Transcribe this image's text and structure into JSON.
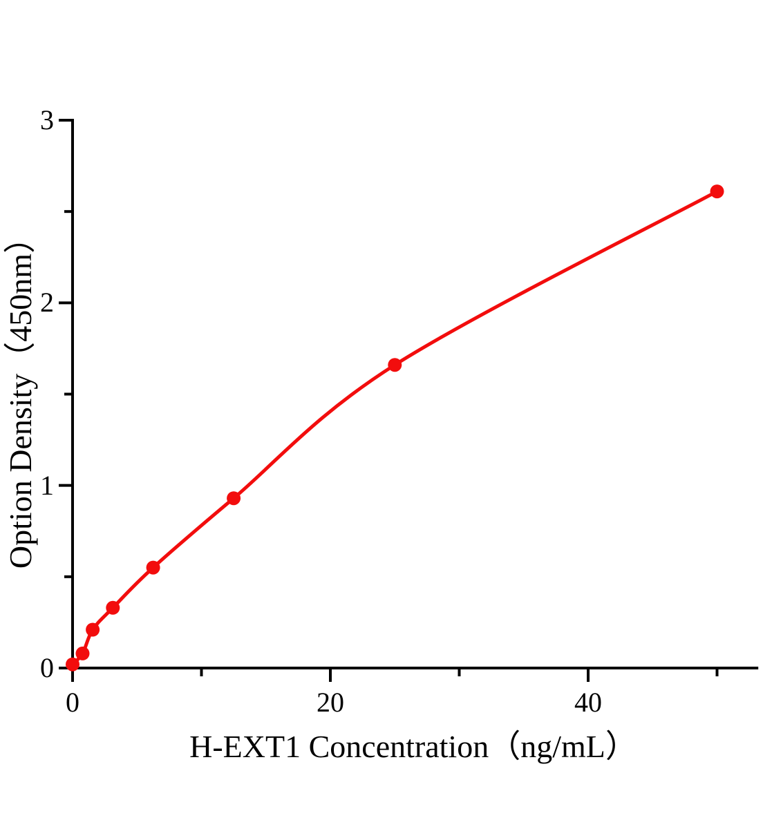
{
  "chart_data": {
    "type": "scatter",
    "subtype": "standard-curve-with-smooth-fit-line",
    "title": "",
    "xlabel": "H-EXT1 Concentration（ng/mL）",
    "ylabel": "Option Density（450nm）",
    "points": [
      {
        "x": 0,
        "y": 0.02
      },
      {
        "x": 0.78,
        "y": 0.08
      },
      {
        "x": 1.56,
        "y": 0.21
      },
      {
        "x": 3.125,
        "y": 0.33
      },
      {
        "x": 6.25,
        "y": 0.55
      },
      {
        "x": 12.5,
        "y": 0.93
      },
      {
        "x": 25,
        "y": 1.66
      },
      {
        "x": 50,
        "y": 2.61
      }
    ],
    "xlim": [
      0,
      53.2
    ],
    "ylim": [
      0,
      3
    ],
    "x_major_ticks": [
      0,
      20,
      40
    ],
    "x_major_tick_labels": [
      "0",
      "20",
      "40"
    ],
    "x_minor_ticks": [
      10,
      30,
      50
    ],
    "y_major_ticks": [
      0,
      1,
      2,
      3
    ],
    "y_major_tick_labels": [
      "0",
      "1",
      "2",
      "3"
    ],
    "y_minor_ticks": [
      0.5,
      1.5,
      2.5
    ],
    "grid": false,
    "legend": "none",
    "colors": {
      "line": "#f20d0d",
      "marker": "#f20d0d",
      "axis": "#000000",
      "text": "#000000",
      "background": "#ffffff"
    },
    "marker": "circle",
    "marker_radius_px": 10
  }
}
